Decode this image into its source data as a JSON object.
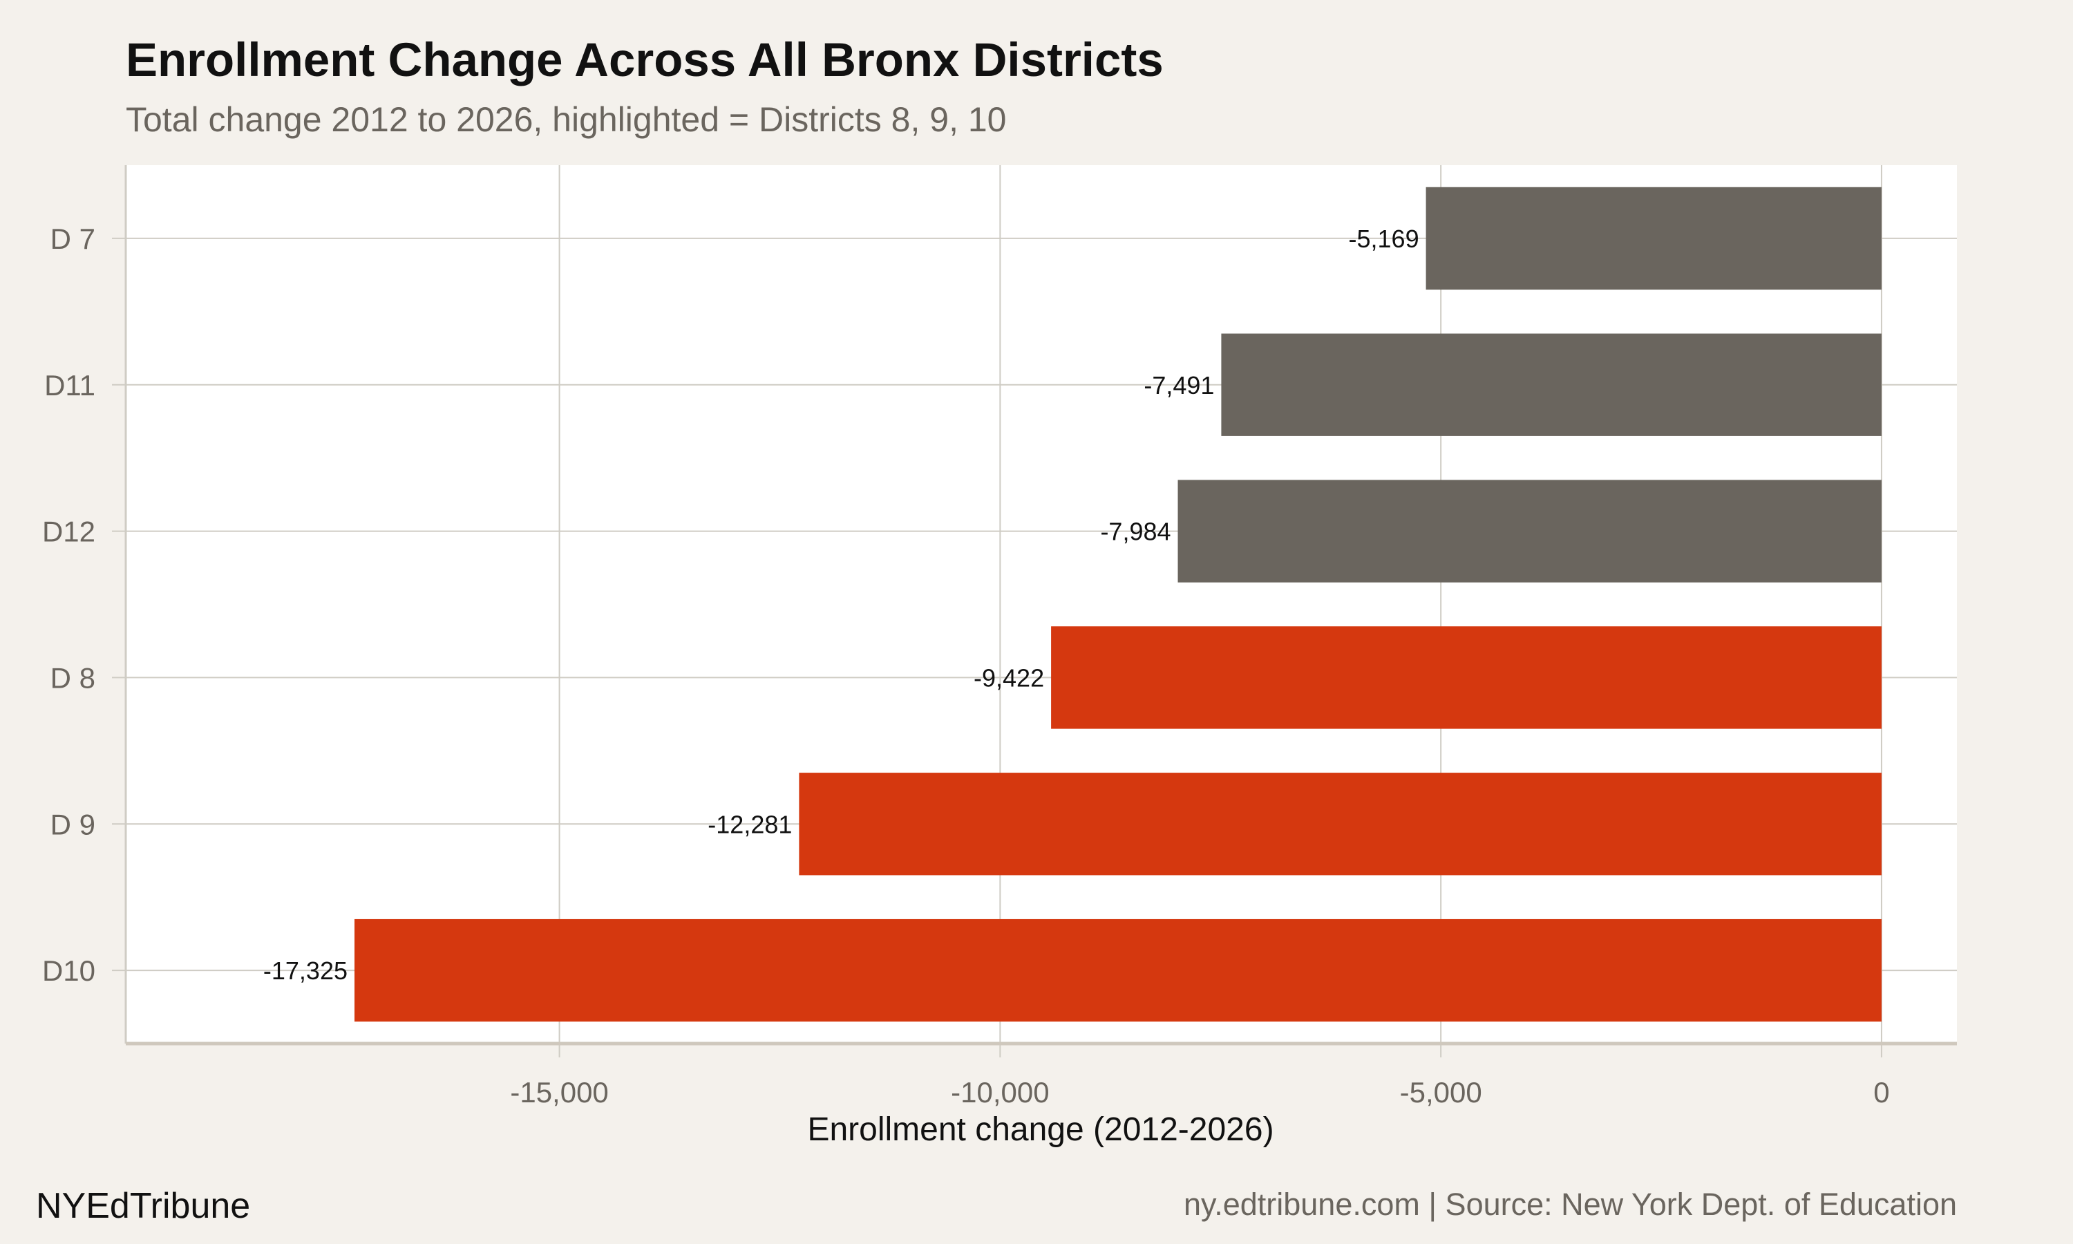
{
  "header": {
    "title": "Enrollment Change Across All Bronx Districts",
    "subtitle": "Total change 2012 to 2026, highlighted = Districts 8, 9, 10"
  },
  "footer": {
    "brand": "NYEdTribune",
    "source": "ny.edtribune.com | Source: New York Dept. of Education"
  },
  "colors": {
    "background": "#f4f1ec",
    "panel": "#ffffff",
    "grid": "#cfccc4",
    "highlight": "#d5380f",
    "other": "#6a655e"
  },
  "chart_data": {
    "type": "bar",
    "orientation": "horizontal",
    "title": "Enrollment Change Across All Bronx Districts",
    "subtitle": "Total change 2012 to 2026, highlighted = Districts 8, 9, 10",
    "xlabel": "Enrollment change (2012-2026)",
    "ylabel": "",
    "categories": [
      "D 7",
      "D11",
      "D12",
      "D 8",
      "D 9",
      "D10"
    ],
    "values": [
      -5169,
      -7491,
      -7984,
      -9422,
      -12281,
      -17325
    ],
    "data_labels": [
      "-5,169",
      "-7,491",
      "-7,984",
      "-9,422",
      "-12,281",
      "-17,325"
    ],
    "highlighted": [
      false,
      false,
      false,
      true,
      true,
      true
    ],
    "xlim": [
      -19920,
      855
    ],
    "xticks": [
      -15000,
      -10000,
      -5000,
      0
    ],
    "xtick_labels": [
      "-15,000",
      "-10,000",
      "-5,000",
      "0"
    ],
    "grid": true,
    "legend": "none"
  }
}
